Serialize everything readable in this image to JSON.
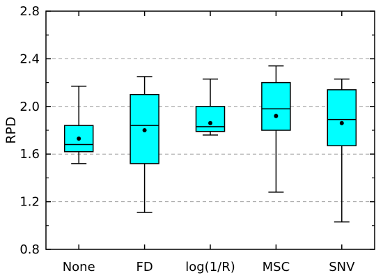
{
  "chart_data": {
    "type": "box",
    "ylabel": "RPD",
    "xlabel": "",
    "ylim": [
      0.8,
      2.8
    ],
    "yticks": [
      0.8,
      1.2,
      1.6,
      2.0,
      2.4,
      2.8
    ],
    "ytick_labels": [
      "0.8",
      "1.2",
      "1.6",
      "2.0",
      "2.4",
      "2.8"
    ],
    "grid": true,
    "box_color": "#00ffff",
    "categories": [
      "None",
      "FD",
      "log(1/R)",
      "MSC",
      "SNV"
    ],
    "boxes": [
      {
        "min": 1.52,
        "q1": 1.62,
        "median": 1.68,
        "q3": 1.84,
        "max": 2.17,
        "mean": 1.73
      },
      {
        "min": 1.11,
        "q1": 1.52,
        "median": 1.84,
        "q3": 2.1,
        "max": 2.25,
        "mean": 1.8
      },
      {
        "min": 1.76,
        "q1": 1.79,
        "median": 1.83,
        "q3": 2.0,
        "max": 2.23,
        "mean": 1.86
      },
      {
        "min": 1.28,
        "q1": 1.8,
        "median": 1.98,
        "q3": 2.2,
        "max": 2.34,
        "mean": 1.92
      },
      {
        "min": 1.03,
        "q1": 1.67,
        "median": 1.89,
        "q3": 2.14,
        "max": 2.23,
        "mean": 1.86
      }
    ]
  }
}
